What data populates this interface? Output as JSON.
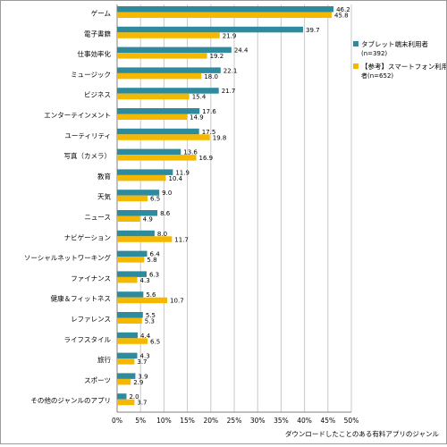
{
  "chart_data": {
    "type": "bar",
    "orientation": "horizontal",
    "categories": [
      "ゲーム",
      "電子書籍",
      "仕事効率化",
      "ミュージック",
      "ビジネス",
      "エンターテインメント",
      "ユーティリティ",
      "写真（カメラ）",
      "教育",
      "天気",
      "ニュース",
      "ナビゲーション",
      "ソーシャルネットワーキング",
      "ファイナンス",
      "健康＆フィットネス",
      "レファレンス",
      "ライフスタイル",
      "旅行",
      "スポーツ",
      "その他のジャンルのアプリ"
    ],
    "series": [
      {
        "name": "タブレット端末利用者 (n=392)",
        "color": "#2E8B9E",
        "values": [
          46.2,
          39.7,
          24.4,
          22.1,
          21.7,
          17.6,
          17.5,
          13.6,
          11.9,
          9.0,
          8.6,
          8.0,
          6.4,
          6.3,
          5.6,
          5.5,
          4.4,
          4.3,
          3.9,
          2.0
        ]
      },
      {
        "name": "【参考】スマートフォン利用者 (n=652)",
        "color": "#F5B800",
        "values": [
          45.8,
          21.9,
          19.2,
          18.0,
          15.4,
          14.9,
          19.8,
          16.9,
          10.4,
          6.5,
          4.9,
          11.7,
          5.8,
          4.3,
          10.7,
          5.3,
          6.5,
          3.7,
          2.9,
          3.7
        ]
      }
    ],
    "value_labels": [
      [
        "46.2",
        "45.8"
      ],
      [
        "39.7",
        "21.9"
      ],
      [
        "24.4",
        "19.2"
      ],
      [
        "22.1",
        "18.0"
      ],
      [
        "21.7",
        "15.4"
      ],
      [
        "17.6",
        "14.9"
      ],
      [
        "17.5",
        "19.8"
      ],
      [
        "13.6",
        "16.9"
      ],
      [
        "11.9",
        "10.4"
      ],
      [
        "9.0",
        "6.5"
      ],
      [
        "8.6",
        "4.9"
      ],
      [
        "8.0",
        "11.7"
      ],
      [
        "6.4",
        "5.8"
      ],
      [
        "6.3",
        "4.3"
      ],
      [
        "5.6",
        "10.7"
      ],
      [
        "5.5",
        "5.3"
      ],
      [
        "4.4",
        "6.5"
      ],
      [
        "4.3",
        "3.7"
      ],
      [
        "3.9",
        "2.9"
      ],
      [
        "2.0",
        "3.7"
      ]
    ],
    "xlim": [
      0,
      50
    ],
    "xticks": [
      "0%",
      "5%",
      "10%",
      "15%",
      "20%",
      "25%",
      "30%",
      "35%",
      "40%",
      "45%",
      "50%"
    ],
    "xlabel": "ダウンロードしたことのある有料アプリのジャンル",
    "grid": "vertical",
    "legend_position": "right",
    "legend": [
      {
        "line1": "タブレット端末利用者",
        "line2": "(n=392)"
      },
      {
        "line1": "【参考】スマートフォン利用",
        "line2": "者(n=652)"
      }
    ]
  }
}
